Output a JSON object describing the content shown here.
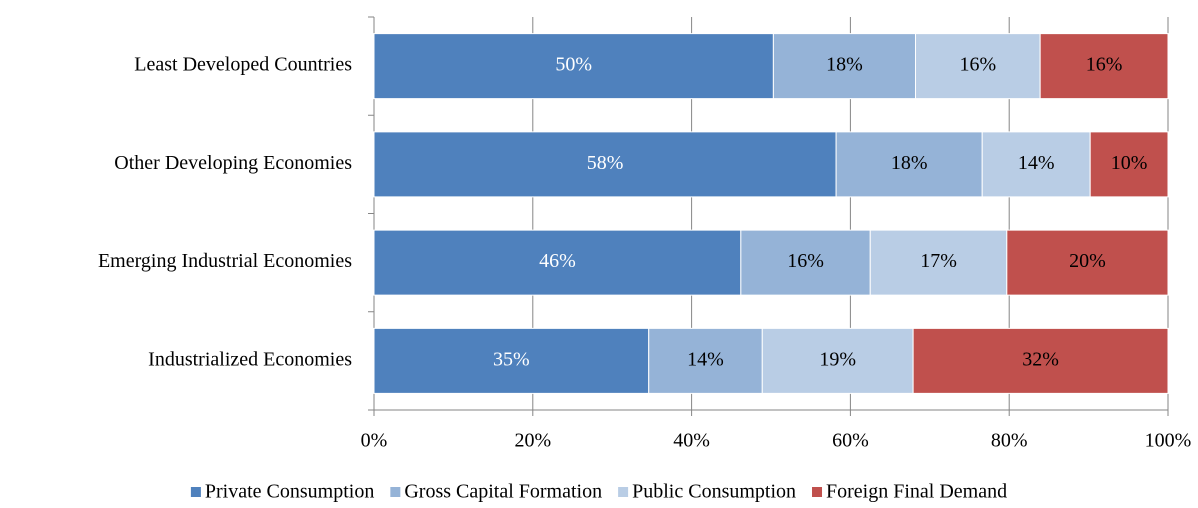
{
  "chart_data": {
    "type": "stacked-barh",
    "categories": [
      "Least Developed Countries",
      "Other Developing Economies",
      "Emerging Industrial Economies",
      "Industrialized Economies"
    ],
    "series": [
      {
        "name": "Private Consumption",
        "color": "#4f81bd",
        "values": [
          50.3,
          58.2,
          46.2,
          34.6
        ],
        "value_labels": [
          "50%",
          "58%",
          "46%",
          "35%"
        ]
      },
      {
        "name": "Gross Capital Formation",
        "color": "#95b3d7",
        "values": [
          17.9,
          18.4,
          16.3,
          14.3
        ],
        "value_labels": [
          "18%",
          "18%",
          "16%",
          "14%"
        ]
      },
      {
        "name": "Public Consumption",
        "color": "#b9cde5",
        "values": [
          15.7,
          13.6,
          17.2,
          19.0
        ],
        "value_labels": [
          "16%",
          "14%",
          "17%",
          "19%"
        ]
      },
      {
        "name": "Foreign Final Demand",
        "color": "#c0504d",
        "values": [
          16.1,
          9.8,
          20.3,
          32.1
        ],
        "value_labels": [
          "16%",
          "10%",
          "20%",
          "32%"
        ]
      }
    ],
    "xlim": [
      0,
      100
    ],
    "xticks": [
      {
        "value": 0,
        "label": "0%"
      },
      {
        "value": 20,
        "label": "20%"
      },
      {
        "value": 40,
        "label": "40%"
      },
      {
        "value": 60,
        "label": "60%"
      },
      {
        "value": 80,
        "label": "80%"
      },
      {
        "value": 100,
        "label": "100%"
      }
    ],
    "grid": true,
    "legend": "bottom"
  }
}
